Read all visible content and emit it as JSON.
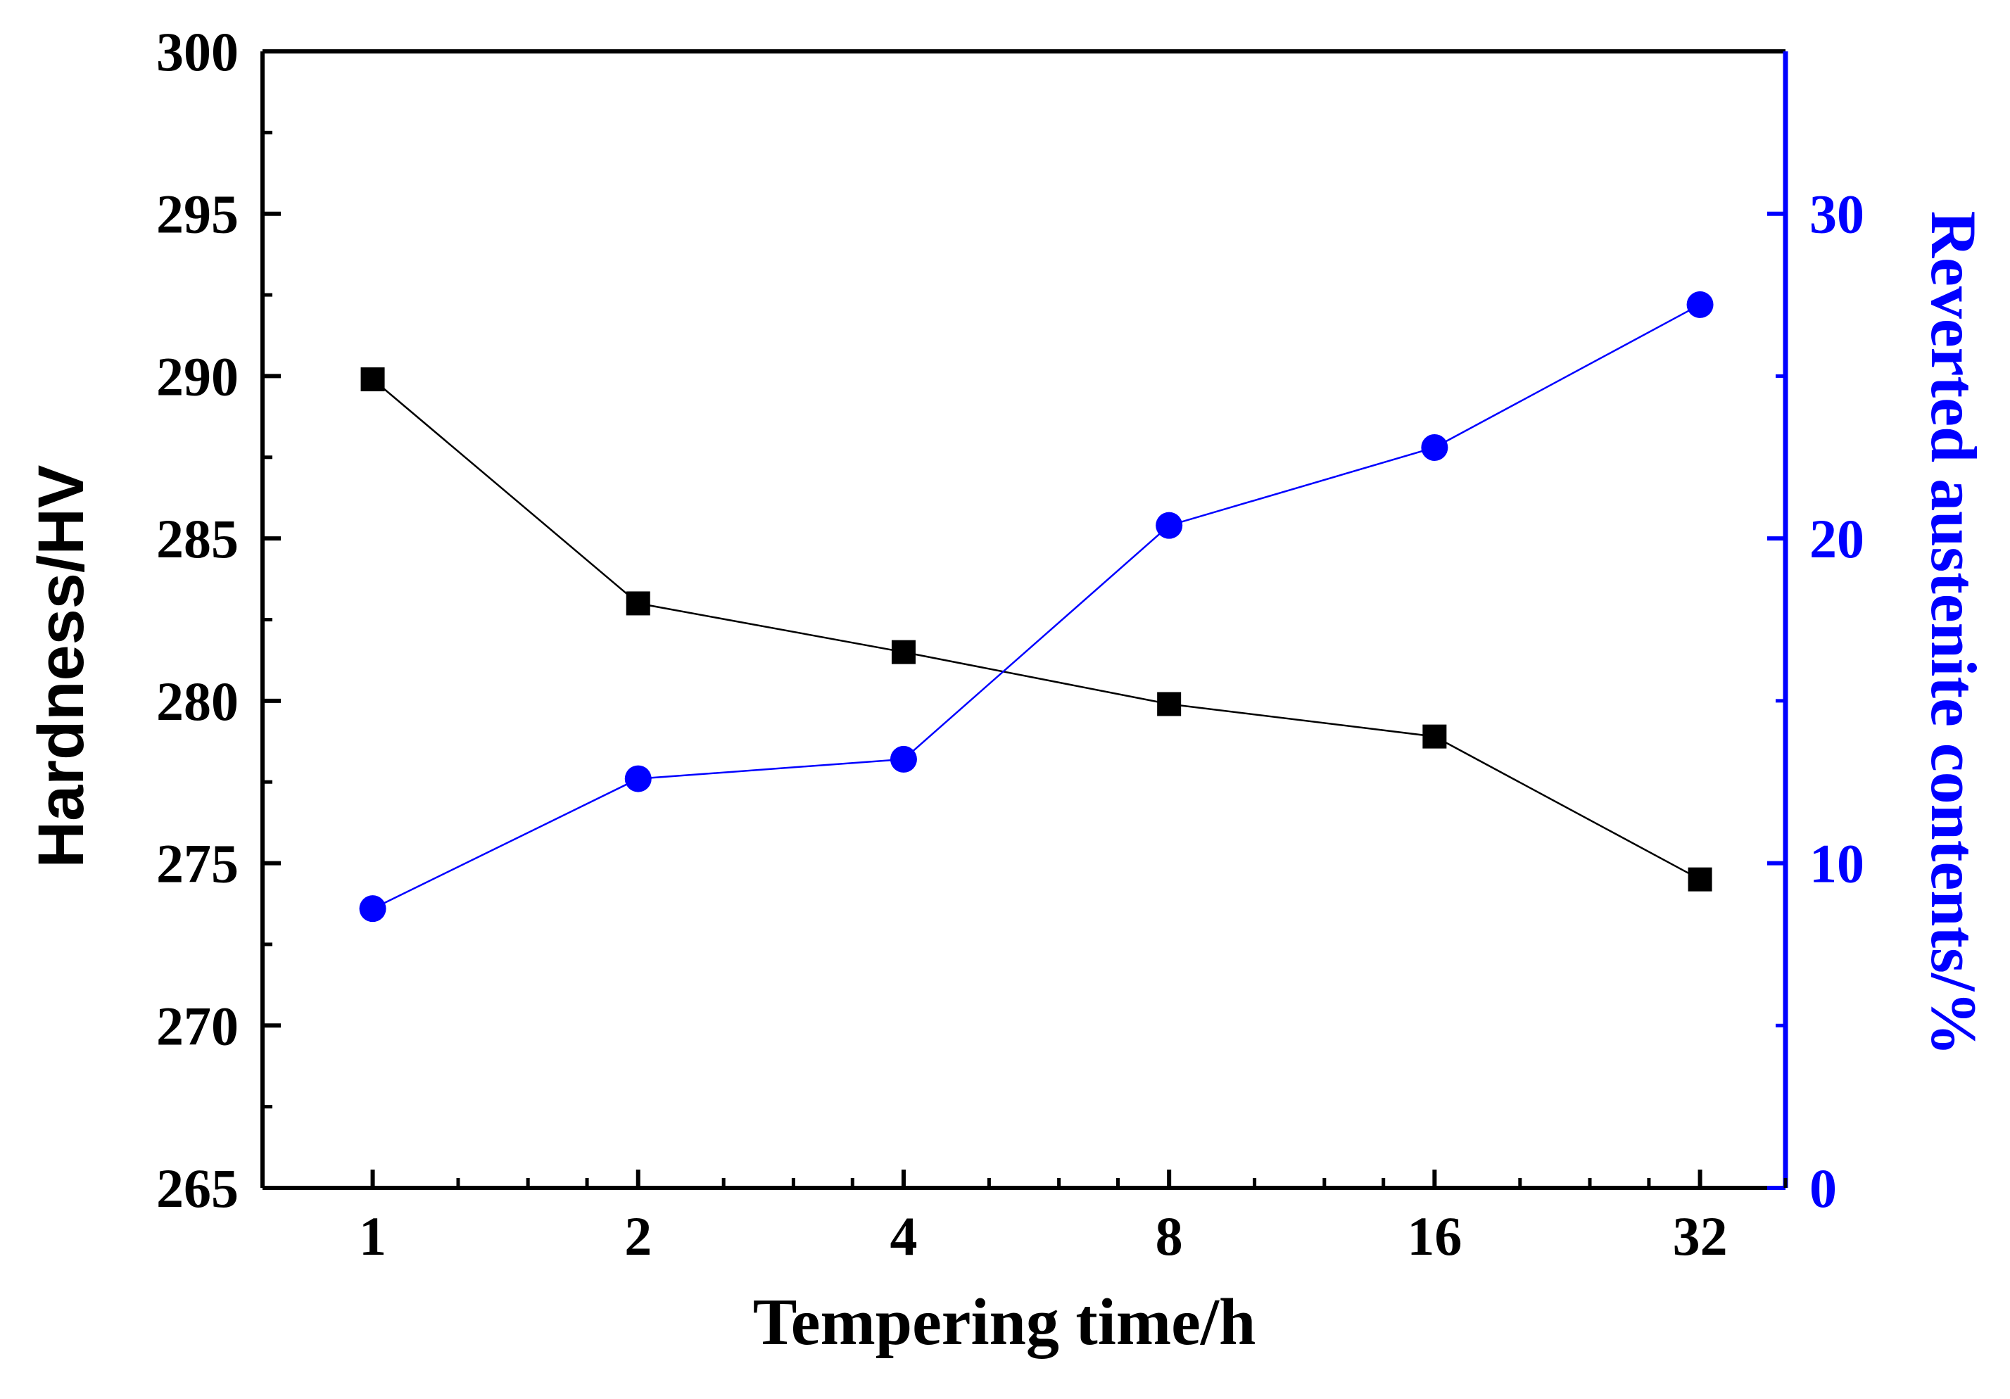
{
  "chart_data": {
    "type": "line",
    "x": [
      1,
      2,
      4,
      8,
      16,
      32
    ],
    "x_tick_labels": [
      "1",
      "2",
      "4",
      "8",
      "16",
      "32"
    ],
    "xlabel": "Tempering time/h",
    "x_scale": "log2",
    "xlim": [
      0.75,
      40
    ],
    "left_axis": {
      "label": "Hardness/HV",
      "ylim": [
        265,
        300
      ],
      "ticks": [
        265,
        270,
        275,
        280,
        285,
        290,
        295,
        300
      ],
      "tick_labels": [
        "265",
        "270",
        "275",
        "280",
        "285",
        "290",
        "295",
        "300"
      ],
      "color": "#000000"
    },
    "right_axis": {
      "label": "Reverted austenite contents/%",
      "ylim": [
        0,
        35
      ],
      "ticks": [
        0,
        10,
        20,
        30
      ],
      "tick_labels": [
        "0",
        "10",
        "20",
        "30"
      ],
      "color": "#0000ff"
    },
    "series": [
      {
        "name": "Hardness",
        "axis": "left",
        "marker": "square",
        "color": "#000000",
        "values": [
          289.9,
          283.0,
          281.5,
          279.9,
          278.9,
          274.5
        ]
      },
      {
        "name": "Reverted austenite contents",
        "axis": "right",
        "marker": "circle",
        "color": "#0000ff",
        "values": [
          8.6,
          12.6,
          13.2,
          20.4,
          22.8,
          27.2
        ]
      }
    ]
  }
}
